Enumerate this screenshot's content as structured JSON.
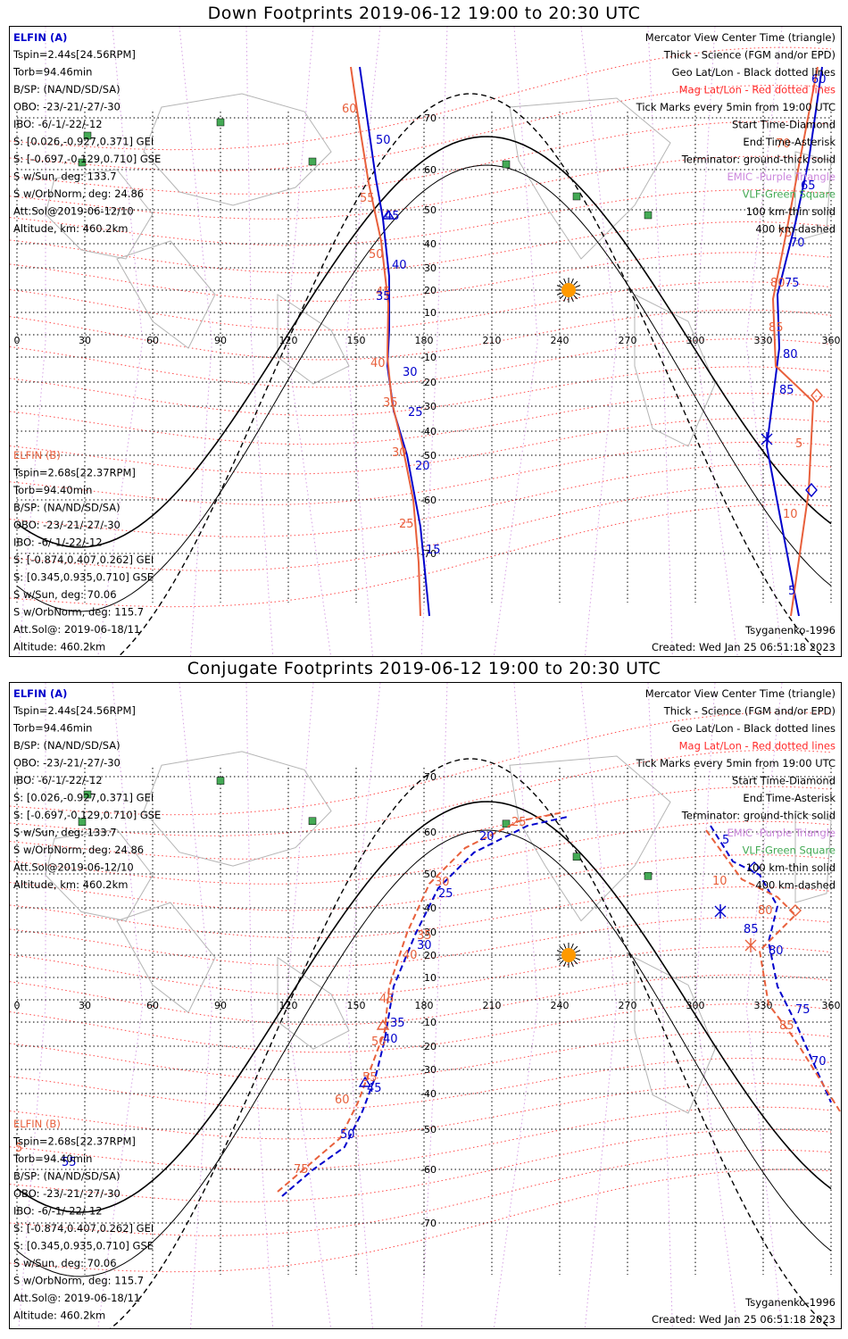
{
  "panels": [
    {
      "title": "Down Footprints 2019-06-12 19:00 to 20:30 UTC",
      "elfin_a": {
        "name": "ELFIN (A)",
        "lines": [
          "Tspin=2.44s[24.56RPM]",
          "Torb=94.46min",
          "B/SP: (NA/ND/SD/SA)",
          "OBO: -23/-21/-27/-30",
          "IBO: -6/-1/-22/-12",
          "S: [0.026,-0.927,0.371] GEI",
          "S: [-0.697,-0.129,0.710] GSE",
          "S w/Sun, deg: 133.7",
          "S w/OrbNorm, deg: 24.86",
          "Att.Sol@2019-06-12/10",
          "Altitude, km: 460.2km"
        ]
      },
      "elfin_b": {
        "name": "ELFIN (B)",
        "lines": [
          "Tspin=2.68s[22.37RPM]",
          "Torb=94.40min",
          "B/SP: (NA/ND/SD/SA)",
          "OBO: -23/-21/-27/-30",
          "IBO: -6/-1/-22/-12",
          "S: [-0.874,0.407,0.262] GEI",
          "S: [0.345,0.935,0.710] GSE",
          "S w/Sun, deg: 70.06",
          "S w/OrbNorm, deg: 115.7",
          "Att.Sol@: 2019-06-18/11",
          "Altitude: 460.2km"
        ]
      },
      "legend": [
        "Mercator View Center Time (triangle)",
        "Thick - Science (FGM and/or EPD)",
        "Geo Lat/Lon - Black dotted lines",
        "Mag Lat/Lon - Red dotted lines",
        "Tick Marks every 5min from 19:00 UTC",
        "Start Time-Diamond",
        "End Time-Asterisk",
        "Terminator: ground-thick solid",
        "EMIC -Purple Triangle",
        "VLF-Green Square",
        "100 km-thin solid",
        "400 km-dashed"
      ],
      "model": "Tsyganenko-1996",
      "created": "Created: Wed Jan 25 06:51:18 2023",
      "ticks_red": [
        "60",
        "55",
        "50",
        "45",
        "40",
        "35",
        "30",
        "25",
        "70",
        "75",
        "80",
        "85",
        "5",
        "10"
      ],
      "ticks_blue": [
        "50",
        "45",
        "40",
        "35",
        "30",
        "25",
        "20",
        "15",
        "60",
        "65",
        "70",
        "75",
        "80",
        "85",
        "5"
      ]
    },
    {
      "title": "Conjugate Footprints 2019-06-12 19:00 to 20:30 UTC",
      "elfin_a": {
        "name": "ELFIN (A)",
        "lines": [
          "Tspin=2.44s[24.56RPM]",
          "Torb=94.46min",
          "B/SP: (NA/ND/SD/SA)",
          "OBO: -23/-21/-27/-30",
          "IBO: -6/-1/-22/-12",
          "S: [0.026,-0.927,0.371] GEI",
          "S: [-0.697,-0.129,0.710] GSE",
          "S w/Sun, deg: 133.7",
          "S w/OrbNorm, deg: 24.86",
          "Att.Sol@2019-06-12/10",
          "Altitude, km: 460.2km"
        ]
      },
      "elfin_b": {
        "name": "ELFIN (B)",
        "lines": [
          "Tspin=2.68s[22.37RPM]",
          "Torb=94.40min",
          "B/SP: (NA/ND/SD/SA)",
          "OBO: -23/-21/-27/-30",
          "IBO: -6/-1/-22/-12",
          "S: [-0.874,0.407,0.262] GEI",
          "S: [0.345,0.935,0.710] GSE",
          "S w/Sun, deg: 70.06",
          "S w/OrbNorm, deg: 115.7",
          "Att.Sol@: 2019-06-18/11",
          "Altitude: 460.2km"
        ]
      },
      "legend": [
        "Mercator View Center Time (triangle)",
        "Thick - Science (FGM and/or EPD)",
        "Geo Lat/Lon - Black dotted lines",
        "Mag Lat/Lon - Red dotted lines",
        "Tick Marks every 5min from 19:00 UTC",
        "Start Time-Diamond",
        "End Time-Asterisk",
        "Terminator: ground-thick solid",
        "EMIC -Purple Triangle",
        "VLF-Green Square",
        "100 km-thin solid",
        "400 km-dashed"
      ],
      "model": "Tsyganenko-1996",
      "created": "Created: Wed Jan 25 06:51:18 2023",
      "ticks_red": [
        "25",
        "30",
        "35",
        "40",
        "45",
        "50",
        "55",
        "60",
        "75",
        "5",
        "10",
        "80",
        "85"
      ],
      "ticks_blue": [
        "20",
        "25",
        "30",
        "35",
        "40",
        "45",
        "50",
        "55",
        "5",
        "85",
        "80",
        "75",
        "70"
      ]
    }
  ],
  "lon_labels": [
    "0",
    "30",
    "60",
    "90",
    "120",
    "150",
    "180",
    "210",
    "240",
    "270",
    "300",
    "330",
    "360"
  ],
  "lat_labels_up": [
    "70",
    "60",
    "50",
    "40",
    "30",
    "20",
    "10"
  ],
  "lat_labels_down": [
    "-10",
    "-20",
    "-30",
    "-40",
    "-50",
    "-60",
    "-70"
  ],
  "colors": {
    "elfin_a": "#0000cc",
    "elfin_b": "#e8603c",
    "mag": "#ff2a2a",
    "emic": "#cc88dd",
    "vlf": "#44aa55",
    "sun": "#ff9900"
  }
}
